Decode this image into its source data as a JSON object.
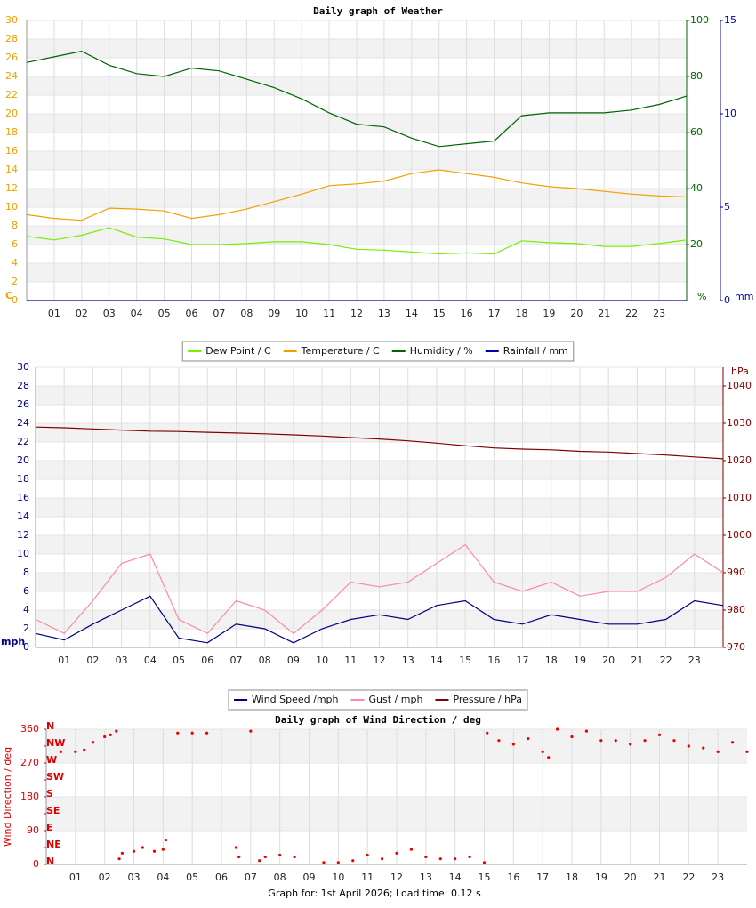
{
  "chart_data": [
    {
      "type": "line",
      "title": "Daily graph of Weather",
      "xlim": [
        0,
        24
      ],
      "xticks": [
        {
          "value": 1,
          "label": "01"
        },
        {
          "value": 2,
          "label": "02"
        },
        {
          "value": 3,
          "label": "03"
        },
        {
          "value": 4,
          "label": "04"
        },
        {
          "value": 5,
          "label": "05"
        },
        {
          "value": 6,
          "label": "06"
        },
        {
          "value": 7,
          "label": "07"
        },
        {
          "value": 8,
          "label": "08"
        },
        {
          "value": 9,
          "label": "09"
        },
        {
          "value": 10,
          "label": "10"
        },
        {
          "value": 11,
          "label": "11"
        },
        {
          "value": 12,
          "label": "12"
        },
        {
          "value": 13,
          "label": "13"
        },
        {
          "value": 14,
          "label": "14"
        },
        {
          "value": 15,
          "label": "15"
        },
        {
          "value": 16,
          "label": "16"
        },
        {
          "value": 17,
          "label": "17"
        },
        {
          "value": 18,
          "label": "18"
        },
        {
          "value": 19,
          "label": "19"
        },
        {
          "value": 20,
          "label": "20"
        },
        {
          "value": 21,
          "label": "21"
        },
        {
          "value": 22,
          "label": "22"
        },
        {
          "value": 23,
          "label": "23"
        }
      ],
      "ylim": [
        0,
        30
      ],
      "yticks": [
        0,
        2,
        4,
        6,
        8,
        10,
        12,
        14,
        16,
        18,
        20,
        22,
        24,
        26,
        28,
        30
      ],
      "y_label": "C",
      "y_color": "#f0a000",
      "y2lim": [
        0,
        100
      ],
      "y2ticks": [
        20,
        40,
        60,
        80,
        100
      ],
      "y2_label": "%",
      "y2_color": "#006400",
      "y3lim": [
        0,
        15
      ],
      "y3ticks": [
        0,
        5,
        10,
        15
      ],
      "y3_label": "mm",
      "y3_color": "#0000aa",
      "grid": true,
      "x": [
        0,
        1,
        2,
        3,
        4,
        5,
        6,
        7,
        8,
        9,
        10,
        11,
        12,
        13,
        14,
        15,
        16,
        17,
        18,
        19,
        20,
        21,
        22,
        23,
        24
      ],
      "series": [
        {
          "name": "Dew Point / C",
          "color": "#77ee00",
          "axis": "y",
          "values": [
            6.9,
            6.5,
            7.0,
            7.8,
            6.8,
            6.6,
            6.0,
            6.0,
            6.1,
            6.3,
            6.3,
            6.0,
            5.5,
            5.4,
            5.2,
            5.0,
            5.1,
            5.0,
            6.4,
            6.2,
            6.1,
            5.8,
            5.8,
            6.1,
            6.5
          ]
        },
        {
          "name": "Temperature / C",
          "color": "#f0a000",
          "axis": "y",
          "values": [
            9.2,
            8.8,
            8.6,
            9.9,
            9.8,
            9.6,
            8.8,
            9.2,
            9.8,
            10.6,
            11.4,
            12.3,
            12.5,
            12.8,
            13.6,
            14.0,
            13.6,
            13.2,
            12.6,
            12.2,
            12.0,
            11.7,
            11.4,
            11.2,
            11.1
          ]
        },
        {
          "name": "Humidity / %",
          "color": "#006400",
          "axis": "y2",
          "values": [
            85,
            87,
            89,
            84,
            81,
            80,
            83,
            82,
            79,
            76,
            72,
            67,
            63,
            62,
            58,
            55,
            56,
            57,
            66,
            67,
            67,
            67,
            68,
            70,
            73
          ]
        },
        {
          "name": "Rainfall / mm",
          "color": "#0000aa",
          "axis": "y3",
          "values": [
            0,
            0,
            0,
            0,
            0,
            0,
            0,
            0,
            0,
            0,
            0,
            0,
            0,
            0,
            0,
            0,
            0,
            0,
            0,
            0,
            0,
            0,
            0,
            0,
            0
          ]
        }
      ]
    },
    {
      "type": "line",
      "xlim": [
        0,
        24
      ],
      "xticks": [
        {
          "value": 1,
          "label": "01"
        },
        {
          "value": 2,
          "label": "02"
        },
        {
          "value": 3,
          "label": "03"
        },
        {
          "value": 4,
          "label": "04"
        },
        {
          "value": 5,
          "label": "05"
        },
        {
          "value": 6,
          "label": "06"
        },
        {
          "value": 7,
          "label": "07"
        },
        {
          "value": 8,
          "label": "08"
        },
        {
          "value": 9,
          "label": "09"
        },
        {
          "value": 10,
          "label": "10"
        },
        {
          "value": 11,
          "label": "11"
        },
        {
          "value": 12,
          "label": "12"
        },
        {
          "value": 13,
          "label": "13"
        },
        {
          "value": 14,
          "label": "14"
        },
        {
          "value": 15,
          "label": "15"
        },
        {
          "value": 16,
          "label": "16"
        },
        {
          "value": 17,
          "label": "17"
        },
        {
          "value": 18,
          "label": "18"
        },
        {
          "value": 19,
          "label": "19"
        },
        {
          "value": 20,
          "label": "20"
        },
        {
          "value": 21,
          "label": "21"
        },
        {
          "value": 22,
          "label": "22"
        },
        {
          "value": 23,
          "label": "23"
        }
      ],
      "ylim": [
        0,
        30
      ],
      "yticks": [
        0,
        2,
        4,
        6,
        8,
        10,
        12,
        14,
        16,
        18,
        20,
        22,
        24,
        26,
        28,
        30
      ],
      "y_label": "mph",
      "y_color": "#000080",
      "y2lim": [
        970,
        1045
      ],
      "y2ticks": [
        970,
        980,
        990,
        1000,
        1010,
        1020,
        1030,
        1040
      ],
      "y2_label": "hPa",
      "y2_color": "#800000",
      "grid": true,
      "x": [
        0,
        1,
        2,
        3,
        4,
        5,
        6,
        7,
        8,
        9,
        10,
        11,
        12,
        13,
        14,
        15,
        16,
        17,
        18,
        19,
        20,
        21,
        22,
        23,
        24
      ],
      "series": [
        {
          "name": "Wind Speed /mph",
          "color": "#000080",
          "axis": "y",
          "values": [
            1.5,
            0.8,
            2.5,
            4,
            5.5,
            1,
            0.5,
            2.5,
            2,
            0.5,
            2,
            3,
            3.5,
            3,
            4.5,
            5,
            3,
            2.5,
            3.5,
            3,
            2.5,
            2.5,
            3,
            5,
            4.5
          ]
        },
        {
          "name": "Gust / mph",
          "color": "#ff88aa",
          "axis": "y",
          "values": [
            3,
            1.5,
            5,
            9,
            10,
            3,
            1.5,
            5,
            4,
            1.5,
            4,
            7,
            6.5,
            7,
            9,
            11,
            7,
            6,
            7,
            5.5,
            6,
            6,
            7.5,
            10,
            8
          ]
        },
        {
          "name": "Pressure / hPa",
          "color": "#800000",
          "axis": "y2",
          "values": [
            1029,
            1028.8,
            1028.5,
            1028.2,
            1027.9,
            1027.8,
            1027.6,
            1027.4,
            1027.2,
            1026.9,
            1026.6,
            1026.2,
            1025.8,
            1025.3,
            1024.7,
            1024.0,
            1023.4,
            1023.1,
            1022.9,
            1022.5,
            1022.3,
            1021.9,
            1021.5,
            1021,
            1020.5
          ]
        }
      ]
    },
    {
      "type": "scatter",
      "title": "Daily graph of Wind Direction / deg",
      "xlim": [
        0,
        24
      ],
      "xticks": [
        {
          "value": 1,
          "label": "01"
        },
        {
          "value": 2,
          "label": "02"
        },
        {
          "value": 3,
          "label": "03"
        },
        {
          "value": 4,
          "label": "04"
        },
        {
          "value": 5,
          "label": "05"
        },
        {
          "value": 6,
          "label": "06"
        },
        {
          "value": 7,
          "label": "07"
        },
        {
          "value": 8,
          "label": "08"
        },
        {
          "value": 9,
          "label": "09"
        },
        {
          "value": 10,
          "label": "10"
        },
        {
          "value": 11,
          "label": "11"
        },
        {
          "value": 12,
          "label": "12"
        },
        {
          "value": 13,
          "label": "13"
        },
        {
          "value": 14,
          "label": "14"
        },
        {
          "value": 15,
          "label": "15"
        },
        {
          "value": 16,
          "label": "16"
        },
        {
          "value": 17,
          "label": "17"
        },
        {
          "value": 18,
          "label": "18"
        },
        {
          "value": 19,
          "label": "19"
        },
        {
          "value": 20,
          "label": "20"
        },
        {
          "value": 21,
          "label": "21"
        },
        {
          "value": 22,
          "label": "22"
        },
        {
          "value": 23,
          "label": "23"
        }
      ],
      "ylim": [
        0,
        360
      ],
      "yticks": [
        0,
        90,
        180,
        270,
        360
      ],
      "y_label": "Wind Direction / deg",
      "y_color": "#dd0000",
      "compass_ticks": [
        {
          "value": 360,
          "label": "N"
        },
        {
          "value": 315,
          "label": "NW"
        },
        {
          "value": 270,
          "label": "W"
        },
        {
          "value": 225,
          "label": "SW"
        },
        {
          "value": 180,
          "label": "S"
        },
        {
          "value": 135,
          "label": "SE"
        },
        {
          "value": 90,
          "label": "E"
        },
        {
          "value": 45,
          "label": "NE"
        },
        {
          "value": 0,
          "label": "N"
        }
      ],
      "grid": true,
      "color": "#ee0000",
      "x": [
        0.5,
        1,
        1.3,
        1.6,
        2,
        2.2,
        2.4,
        2.5,
        2.6,
        3,
        3.3,
        3.7,
        4,
        4.1,
        4.5,
        5,
        5.5,
        6.5,
        6.6,
        7,
        7.3,
        7.5,
        8,
        8.5,
        9.5,
        10,
        10.5,
        11,
        11.5,
        12,
        12.5,
        13,
        13.5,
        14,
        14.5,
        15,
        15.1,
        15.5,
        16,
        16.5,
        17,
        17.2,
        17.5,
        18,
        18.5,
        19,
        19.5,
        20,
        20.5,
        21,
        21.5,
        22,
        22.5,
        23,
        23.5,
        24
      ],
      "values": [
        300,
        300,
        305,
        325,
        340,
        345,
        355,
        15,
        30,
        35,
        45,
        35,
        40,
        65,
        350,
        350,
        350,
        45,
        20,
        355,
        10,
        20,
        25,
        20,
        5,
        5,
        10,
        25,
        15,
        30,
        40,
        20,
        15,
        15,
        20,
        5,
        350,
        330,
        320,
        335,
        300,
        285,
        360,
        340,
        355,
        330,
        330,
        320,
        330,
        345,
        330,
        315,
        310,
        300,
        325,
        300
      ]
    }
  ],
  "footer": "Graph for: 1st April 2026; Load time: 0.12 s"
}
